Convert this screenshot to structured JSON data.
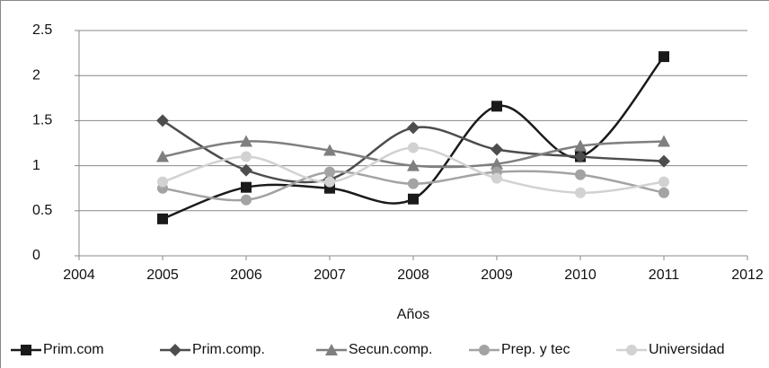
{
  "chart_data": {
    "type": "line",
    "x_label": "Años",
    "x": [
      2005,
      2006,
      2007,
      2008,
      2009,
      2010,
      2011
    ],
    "xlim": [
      2004,
      2012
    ],
    "xticks": [
      2004,
      2005,
      2006,
      2007,
      2008,
      2009,
      2010,
      2011,
      2012
    ],
    "ylim": [
      0,
      2.5
    ],
    "yticks": [
      0,
      0.5,
      1,
      1.5,
      2,
      2.5
    ],
    "grid": true,
    "smooth": true,
    "legend": "bottom",
    "series": [
      {
        "name": "Prim.com",
        "color": "#1a1a1a",
        "marker": "square",
        "values": [
          0.41,
          0.76,
          0.75,
          0.63,
          1.66,
          1.1,
          2.21
        ]
      },
      {
        "name": "Prim.comp.",
        "color": "#4d4d4d",
        "marker": "diamond",
        "values": [
          1.5,
          0.95,
          0.85,
          1.42,
          1.18,
          1.1,
          1.05
        ]
      },
      {
        "name": "Secun.comp.",
        "color": "#7f7f7f",
        "marker": "triangle",
        "values": [
          1.1,
          1.27,
          1.17,
          1.0,
          1.02,
          1.22,
          1.27
        ]
      },
      {
        "name": "Prep. y tec",
        "color": "#a3a3a3",
        "marker": "circle",
        "values": [
          0.75,
          0.62,
          0.93,
          0.8,
          0.93,
          0.9,
          0.7
        ]
      },
      {
        "name": "Universidad",
        "color": "#d2d2d2",
        "marker": "circle",
        "values": [
          0.82,
          1.1,
          0.82,
          1.2,
          0.86,
          0.7,
          0.82
        ]
      }
    ]
  }
}
